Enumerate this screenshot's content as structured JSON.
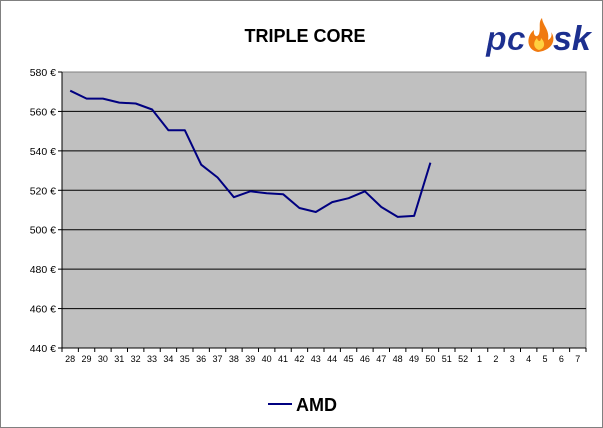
{
  "chart_data": {
    "type": "line",
    "title": "TRIPLE CORE",
    "categories": [
      "28",
      "29",
      "30",
      "31",
      "32",
      "33",
      "34",
      "35",
      "36",
      "37",
      "38",
      "39",
      "40",
      "41",
      "42",
      "43",
      "44",
      "45",
      "46",
      "47",
      "48",
      "49",
      "50",
      "51",
      "52",
      "1",
      "2",
      "3",
      "4",
      "5",
      "6",
      "7"
    ],
    "series": [
      {
        "name": "AMD",
        "color": "#000080",
        "values": [
          570.5,
          566.5,
          566.5,
          564.5,
          564,
          561,
          550.5,
          550.5,
          533,
          526.5,
          516.5,
          519.5,
          518.5,
          518,
          511,
          509,
          514,
          516,
          519.5,
          511.5,
          506.5,
          507,
          534,
          null,
          null,
          null,
          null,
          null,
          null,
          null,
          null,
          null
        ]
      }
    ],
    "y_ticks": [
      "440 €",
      "460 €",
      "480 €",
      "500 €",
      "520 €",
      "540 €",
      "560 €",
      "580 €"
    ],
    "ylim": [
      440,
      580
    ],
    "grid": true,
    "legend": "bottom",
    "plot_background": "#c0c0c0"
  },
  "logo": {
    "text": "pcask",
    "color": "#1c2f8f",
    "flame_color": "#f07a10"
  }
}
